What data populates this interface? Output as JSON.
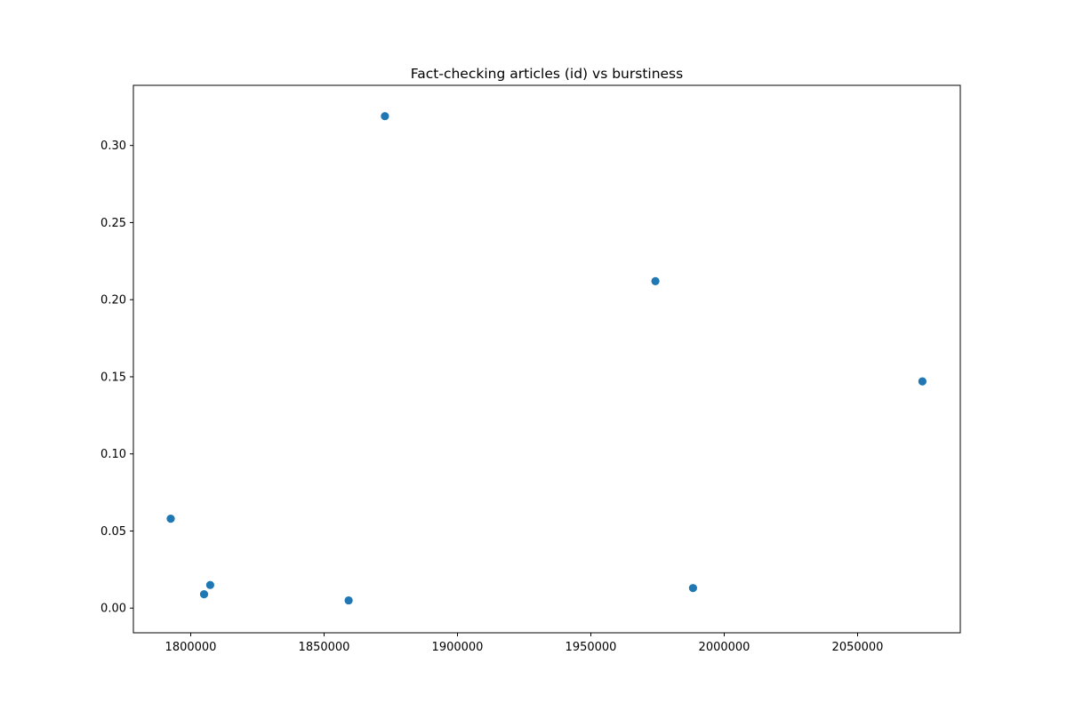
{
  "chart_data": {
    "type": "scatter",
    "title": "Fact-checking articles (id) vs burstiness",
    "xlabel": "",
    "ylabel": "",
    "xlim": [
      1778500,
      2088500
    ],
    "ylim": [
      -0.016,
      0.339
    ],
    "x_ticks": [
      1800000,
      1850000,
      1900000,
      1950000,
      2000000,
      2050000
    ],
    "x_tick_labels": [
      "1800000",
      "1850000",
      "1900000",
      "1950000",
      "2000000",
      "2050000"
    ],
    "y_ticks": [
      0.0,
      0.05,
      0.1,
      0.15,
      0.2,
      0.25,
      0.3
    ],
    "y_tick_labels": [
      "0.00",
      "0.05",
      "0.10",
      "0.15",
      "0.20",
      "0.25",
      "0.30"
    ],
    "grid": false,
    "marker_color": "#1f77b4",
    "points": [
      {
        "x": 1792500,
        "y": 0.058
      },
      {
        "x": 1805000,
        "y": 0.009
      },
      {
        "x": 1807300,
        "y": 0.015
      },
      {
        "x": 1859200,
        "y": 0.005
      },
      {
        "x": 1872800,
        "y": 0.319
      },
      {
        "x": 1974200,
        "y": 0.212
      },
      {
        "x": 1988300,
        "y": 0.013
      },
      {
        "x": 2074300,
        "y": 0.147
      }
    ]
  }
}
